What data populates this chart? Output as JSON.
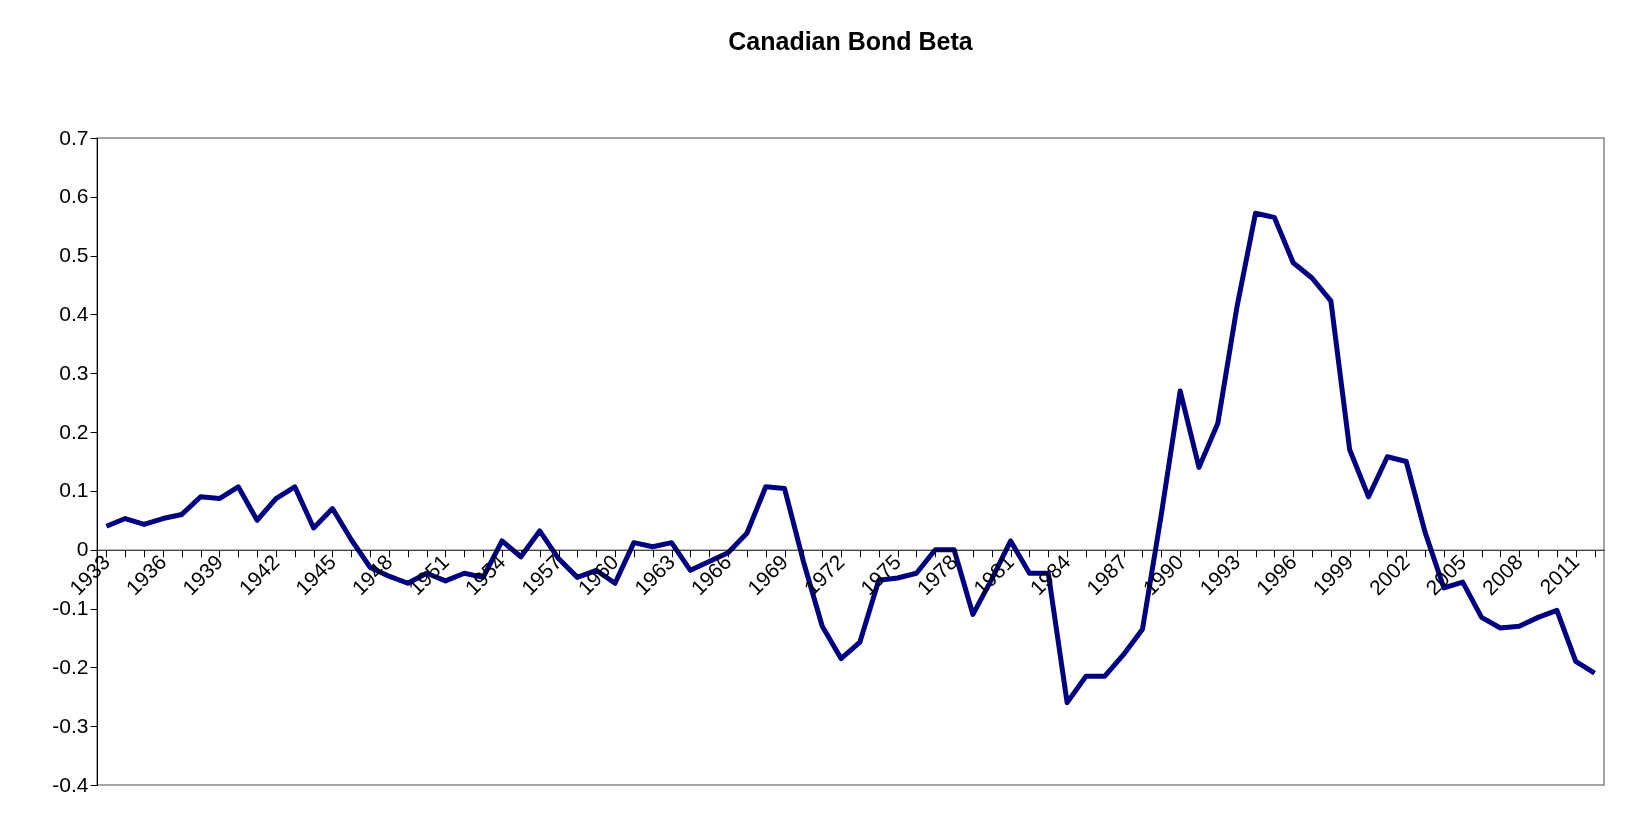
{
  "chart_data": {
    "type": "line",
    "title": "Canadian Bond Beta",
    "categories": [
      "1933",
      null,
      null,
      "1936",
      null,
      null,
      "1939",
      null,
      null,
      "1942",
      null,
      null,
      "1945",
      null,
      null,
      "1948",
      null,
      null,
      "1951",
      null,
      null,
      "1954",
      null,
      null,
      "1957",
      null,
      null,
      "1960",
      null,
      null,
      "1963",
      null,
      null,
      "1966",
      null,
      null,
      "1969",
      null,
      null,
      "1972",
      null,
      null,
      "1975",
      null,
      null,
      "1978",
      null,
      null,
      "1981",
      null,
      null,
      "1984",
      null,
      null,
      "1987",
      null,
      null,
      "1990",
      null,
      null,
      "1993",
      null,
      null,
      "1996",
      null,
      null,
      "1999",
      null,
      null,
      "2002",
      null,
      null,
      "2005",
      null,
      null,
      "2008",
      null,
      null,
      "2011",
      null
    ],
    "series": [
      {
        "color": "#000080",
        "values": [
          0.04,
          0.053,
          0.043,
          0.053,
          0.06,
          0.09,
          0.087,
          0.107,
          0.05,
          0.087,
          0.107,
          0.037,
          0.07,
          0.017,
          -0.03,
          -0.045,
          -0.057,
          -0.04,
          -0.053,
          -0.04,
          -0.047,
          0.015,
          -0.012,
          0.032,
          -0.015,
          -0.047,
          -0.035,
          -0.057,
          0.012,
          0.005,
          0.012,
          -0.035,
          -0.02,
          -0.005,
          0.028,
          0.107,
          0.104,
          -0.02,
          -0.13,
          -0.185,
          -0.157,
          -0.052,
          -0.048,
          -0.04,
          0,
          0,
          -0.11,
          -0.05,
          0.015,
          -0.04,
          -0.04,
          -0.26,
          -0.215,
          -0.215,
          -0.178,
          -0.135,
          0.06,
          0.27,
          0.14,
          0.215,
          0.41,
          0.572,
          0.565,
          0.488,
          0.462,
          0.423,
          0.17,
          0.09,
          0.158,
          0.15,
          0.03,
          -0.065,
          -0.055,
          -0.115,
          -0.133,
          -0.13,
          -0.115,
          -0.103,
          -0.19,
          -0.21
        ]
      }
    ],
    "ylim": [
      -0.4,
      0.7
    ],
    "yticks": [
      -0.4,
      -0.3,
      -0.2,
      -0.1,
      0,
      0.1,
      0.2,
      0.3,
      0.4,
      0.5,
      0.6,
      0.7
    ],
    "grid": false,
    "marker": "none",
    "line_style": "solid"
  }
}
